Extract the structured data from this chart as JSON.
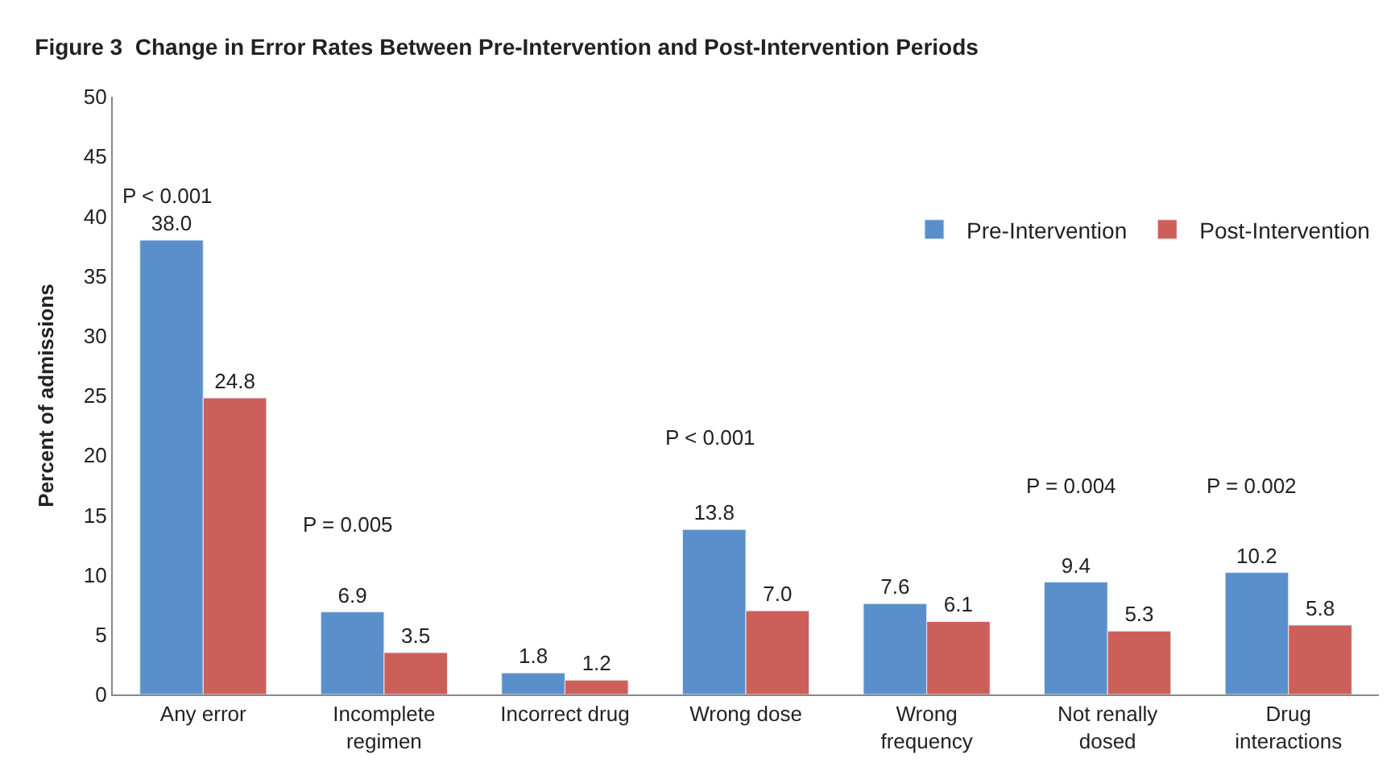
{
  "chart_data": {
    "type": "bar",
    "title": "Figure 3  Change in Error Rates Between Pre-Intervention and Post-Intervention Periods",
    "ylabel": "Percent of admissions",
    "categories": [
      "Any error",
      "Incomplete\nregimen",
      "Incorrect drug",
      "Wrong dose",
      "Wrong\nfrequency",
      "Not renally\ndosed",
      "Drug\ninteractions"
    ],
    "series": [
      {
        "name": "Pre-Intervention",
        "color": "#5b8fcb",
        "values": [
          38.0,
          6.9,
          1.8,
          13.8,
          7.6,
          9.4,
          10.2
        ],
        "value_labels": [
          "38.0",
          "6.9",
          "1.8",
          "13.8",
          "7.6",
          "9.4",
          "10.2"
        ]
      },
      {
        "name": "Post-Intervention",
        "color": "#cc5f5a",
        "values": [
          24.8,
          3.5,
          1.2,
          7.0,
          6.1,
          5.3,
          5.8
        ],
        "value_labels": [
          "24.8",
          "3.5",
          "1.2",
          "7.0",
          "6.1",
          "5.3",
          "5.8"
        ]
      }
    ],
    "annotations": [
      "P < 0.001",
      "P = 0.005",
      "P < 0.001",
      "P = 0.004",
      "P = 0.002"
    ],
    "ylim": [
      0,
      50
    ],
    "yticks": [
      0,
      5,
      10,
      15,
      20,
      25,
      30,
      35,
      40,
      45,
      50
    ],
    "legend": "top right"
  }
}
